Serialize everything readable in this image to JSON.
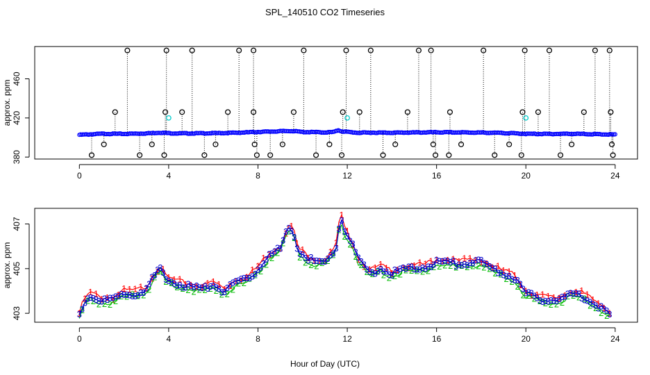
{
  "title": "SPL_140510  CO2 Timeseries",
  "xlabel": "Hour of Day (UTC)",
  "chart_data": [
    {
      "type": "scatter",
      "panel": "top",
      "ylabel": "approx. ppm",
      "xlim": [
        -2,
        25
      ],
      "ylim": [
        378,
        493
      ],
      "xticks": [
        0,
        4,
        8,
        12,
        16,
        20,
        24
      ],
      "xtick_labels": [
        "0",
        "4",
        "8",
        "12",
        "16",
        "20",
        "24"
      ],
      "yticks": [
        380,
        420,
        460
      ],
      "ytick_labels": [
        "380",
        "420",
        "460"
      ],
      "grid": false,
      "colors": {
        "main": "#0000ff",
        "spike": "#000000",
        "cyan": "#00cccc",
        "dots": "#000000"
      },
      "base_series": {
        "x": [
          0.0,
          1.0,
          2.0,
          3.0,
          3.6,
          4.0,
          4.5,
          5.0,
          6.0,
          7.0,
          8.0,
          8.5,
          9.0,
          9.5,
          10.0,
          10.5,
          11.0,
          11.4,
          11.6,
          11.75,
          12.0,
          12.5,
          13.0,
          14.0,
          15.0,
          15.8,
          16.0,
          17.0,
          18.0,
          19.0,
          19.8,
          20.0,
          21.0,
          22.0,
          23.0,
          23.8
        ],
        "y": [
          402.7,
          403.8,
          403.7,
          404.2,
          405.0,
          404.4,
          404.2,
          404.2,
          404.4,
          404.8,
          405.7,
          406.0,
          406.4,
          406.7,
          405.6,
          405.5,
          405.2,
          405.6,
          407.5,
          406.3,
          405.7,
          404.8,
          405.0,
          404.9,
          405.1,
          405.3,
          405.3,
          405.2,
          405.0,
          404.6,
          404.0,
          403.7,
          403.6,
          403.8,
          403.4,
          403.0
        ]
      },
      "spikes_high": {
        "x": [
          2.15,
          3.9,
          5.05,
          7.15,
          7.8,
          10.05,
          11.95,
          13.05,
          15.2,
          15.75,
          18.1,
          19.95,
          21.05,
          23.1,
          23.75
        ],
        "y": [
          489,
          489,
          489,
          489,
          489,
          489,
          489,
          489,
          489,
          489,
          489,
          489,
          489,
          489,
          489
        ]
      },
      "spikes_mid": {
        "x": [
          1.6,
          3.85,
          4.6,
          6.65,
          7.8,
          9.6,
          11.8,
          12.55,
          14.7,
          16.6,
          19.85,
          20.55,
          22.6,
          23.8
        ],
        "y": [
          426,
          426,
          426,
          426,
          426,
          426,
          426,
          426,
          426,
          426,
          426,
          426,
          426,
          426
        ]
      },
      "spikes_low": {
        "x": [
          0.55,
          1.1,
          2.7,
          3.25,
          3.8,
          5.6,
          6.1,
          7.85,
          7.95,
          8.55,
          9.1,
          10.6,
          11.2,
          11.75,
          13.6,
          14.15,
          15.85,
          15.95,
          16.55,
          17.1,
          18.6,
          19.25,
          19.8,
          21.55,
          22.05,
          23.85,
          23.9
        ],
        "y": [
          382,
          393,
          382,
          393,
          382,
          382,
          393,
          393,
          382,
          382,
          393,
          382,
          393,
          382,
          382,
          393,
          393,
          382,
          382,
          393,
          382,
          393,
          382,
          382,
          393,
          393,
          382
        ]
      },
      "cyan_points": {
        "x": [
          4.0,
          12.0,
          20.0
        ],
        "y": [
          420,
          420,
          420
        ]
      }
    },
    {
      "type": "line",
      "panel": "bottom",
      "ylabel": "approx. ppm",
      "xlim": [
        -2,
        25
      ],
      "ylim": [
        402.6,
        407.7
      ],
      "xticks": [
        0,
        4,
        8,
        12,
        16,
        20,
        24
      ],
      "xtick_labels": [
        "0",
        "4",
        "8",
        "12",
        "16",
        "20",
        "24"
      ],
      "yticks": [
        403,
        405,
        407
      ],
      "ytick_labels": [
        "403",
        "405",
        "407"
      ],
      "grid": false,
      "series": [
        {
          "marker": "1",
          "color": "#ff0000",
          "offset": 0.12
        },
        {
          "marker": "2",
          "color": "#00bb00",
          "offset": -0.15
        },
        {
          "marker": "3",
          "color": "#0000cc",
          "offset": 0.0
        }
      ],
      "x": [
        0.0,
        0.2,
        0.5,
        1.0,
        1.5,
        2.0,
        2.5,
        3.0,
        3.3,
        3.6,
        3.9,
        4.5,
        5.0,
        5.5,
        6.0,
        6.5,
        7.0,
        7.5,
        8.0,
        8.5,
        9.0,
        9.3,
        9.55,
        9.8,
        10.2,
        10.6,
        11.0,
        11.3,
        11.5,
        11.7,
        11.9,
        12.2,
        12.5,
        13.0,
        13.5,
        14.0,
        14.5,
        15.0,
        15.5,
        16.0,
        16.5,
        17.0,
        17.5,
        18.0,
        18.5,
        19.0,
        19.5,
        20.0,
        20.5,
        21.0,
        21.5,
        22.0,
        22.5,
        23.0,
        23.5,
        23.8
      ],
      "y": [
        402.9,
        403.5,
        403.8,
        403.6,
        403.6,
        403.9,
        403.9,
        404.1,
        404.6,
        405.0,
        404.5,
        404.3,
        404.2,
        404.1,
        404.3,
        404.0,
        404.4,
        404.5,
        405.0,
        405.6,
        405.9,
        406.7,
        406.8,
        405.8,
        405.5,
        405.3,
        405.3,
        405.6,
        406.0,
        407.4,
        406.6,
        406.2,
        405.4,
        404.8,
        405.0,
        404.8,
        405.0,
        405.0,
        405.1,
        405.3,
        405.3,
        405.2,
        405.3,
        405.3,
        405.0,
        404.8,
        404.6,
        403.9,
        403.7,
        403.6,
        403.6,
        403.9,
        403.8,
        403.5,
        403.2,
        402.9
      ]
    }
  ]
}
